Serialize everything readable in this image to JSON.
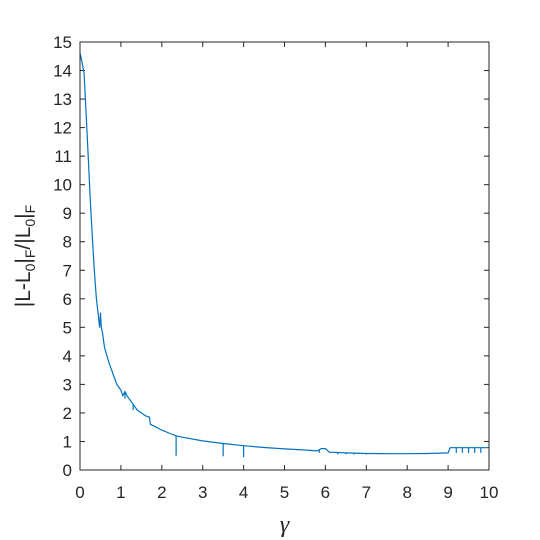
{
  "chart_data": {
    "type": "line",
    "title": "",
    "xlabel": "γ",
    "ylabel": {
      "parts": [
        {
          "text": "|L-L",
          "sub": false
        },
        {
          "text": "0",
          "sub": true
        },
        {
          "text": "|",
          "sub": false
        },
        {
          "text": "F",
          "sub": true
        },
        {
          "text": "/|L",
          "sub": false
        },
        {
          "text": "0",
          "sub": true
        },
        {
          "text": "|",
          "sub": false
        },
        {
          "text": "F",
          "sub": true
        }
      ]
    },
    "xlim": [
      0,
      10
    ],
    "ylim": [
      0,
      15
    ],
    "xticks": [
      0,
      1,
      2,
      3,
      4,
      5,
      6,
      7,
      8,
      9,
      10
    ],
    "yticks": [
      0,
      1,
      2,
      3,
      4,
      5,
      6,
      7,
      8,
      9,
      10,
      11,
      12,
      13,
      14,
      15
    ],
    "grid": false,
    "line_color": "#0072BD",
    "series": [
      {
        "x": [
          0,
          0.05,
          0.1,
          0.15,
          0.2,
          0.25,
          0.3,
          0.35,
          0.4,
          0.45,
          0.48,
          0.5,
          0.52,
          0.55,
          0.6,
          0.7,
          0.8,
          0.9,
          1.0,
          1.05,
          1.1,
          1.12,
          1.15,
          1.2,
          1.25,
          1.3,
          1.35,
          1.4,
          1.5,
          1.6,
          1.7,
          1.72,
          1.8,
          2.0,
          2.2,
          2.35,
          2.5,
          3.0,
          3.5,
          4.0,
          4.5,
          5.0,
          5.5,
          5.8,
          5.9,
          6.0,
          6.1,
          6.2,
          6.5,
          7.0,
          7.5,
          8.0,
          8.5,
          9.0,
          9.05,
          9.5,
          10.0
        ],
        "y": [
          14.6,
          14.3,
          13.9,
          12.5,
          11.0,
          9.5,
          8.2,
          7.0,
          6.0,
          5.4,
          5.0,
          5.5,
          5.0,
          4.8,
          4.3,
          3.8,
          3.4,
          3.0,
          2.8,
          2.6,
          2.75,
          2.7,
          2.6,
          2.5,
          2.4,
          2.3,
          2.2,
          2.1,
          2.0,
          1.9,
          1.85,
          1.6,
          1.55,
          1.4,
          1.28,
          1.2,
          1.15,
          1.02,
          0.93,
          0.85,
          0.79,
          0.74,
          0.7,
          0.67,
          0.75,
          0.75,
          0.62,
          0.62,
          0.6,
          0.58,
          0.57,
          0.57,
          0.58,
          0.6,
          0.78,
          0.78,
          0.78
        ]
      }
    ],
    "dips": [
      {
        "x": 1.1,
        "y": 2.5
      },
      {
        "x": 1.18,
        "y": 2.55
      },
      {
        "x": 1.3,
        "y": 2.1
      },
      {
        "x": 2.35,
        "y": 0.5
      },
      {
        "x": 3.5,
        "y": 0.48
      },
      {
        "x": 4.0,
        "y": 0.45
      },
      {
        "x": 5.85,
        "y": 0.6
      },
      {
        "x": 6.3,
        "y": 0.55
      },
      {
        "x": 6.5,
        "y": 0.55
      },
      {
        "x": 6.7,
        "y": 0.54
      },
      {
        "x": 7.0,
        "y": 0.54
      },
      {
        "x": 9.2,
        "y": 0.6
      },
      {
        "x": 9.35,
        "y": 0.6
      },
      {
        "x": 9.5,
        "y": 0.6
      },
      {
        "x": 9.65,
        "y": 0.6
      },
      {
        "x": 9.8,
        "y": 0.6
      }
    ]
  }
}
